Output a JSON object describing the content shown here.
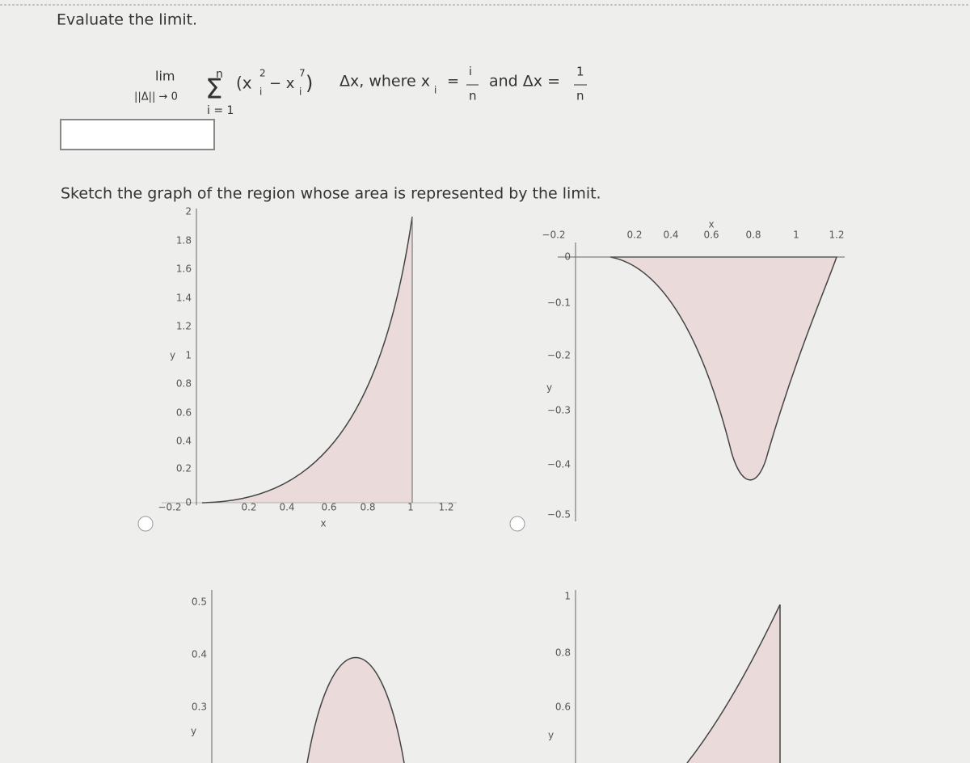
{
  "header": {
    "title": "Evaluate the limit."
  },
  "formula": {
    "lim": "lim",
    "under_lim": "||Δ|| → 0",
    "sum_top": "n",
    "sum": "Σ",
    "sum_bottom": "i = 1",
    "open": "(x",
    "sub1": "i",
    "sup1": "2",
    "minus": "− x",
    "sub2": "i",
    "sup2": "7",
    "close": ")",
    "delta": "Δx, where x",
    "sub3": "i",
    "eq": "=",
    "frac1_num": "i",
    "frac1_den": "n",
    "and": "and Δx =",
    "frac2_num": "1",
    "frac2_den": "n"
  },
  "instruction": "Sketch the graph of the region whose area is represented by the limit.",
  "graphs": [
    {
      "y_label": "y",
      "x_label": "x",
      "y_ticks": [
        "2",
        "1.8",
        "1.6",
        "1.4",
        "1.2",
        "1",
        "0.8",
        "0.6",
        "0.4",
        "0.2",
        "0"
      ],
      "x_ticks": [
        "−0.2",
        "0.2",
        "0.4",
        "0.6",
        "0.8",
        "1",
        "1.2"
      ]
    },
    {
      "y_label": "y",
      "x_label": "x",
      "y_ticks": [
        "0",
        "−0.1",
        "−0.2",
        "−0.3",
        "−0.4",
        "−0.5"
      ],
      "x_ticks": [
        "−0.2",
        "0.2",
        "0.4",
        "0.6",
        "0.8",
        "1",
        "1.2"
      ]
    },
    {
      "y_label": "y",
      "y_ticks": [
        "0.5",
        "0.4",
        "0.3"
      ]
    },
    {
      "y_label": "y",
      "y_ticks": [
        "1",
        "0.8",
        "0.6"
      ]
    }
  ]
}
